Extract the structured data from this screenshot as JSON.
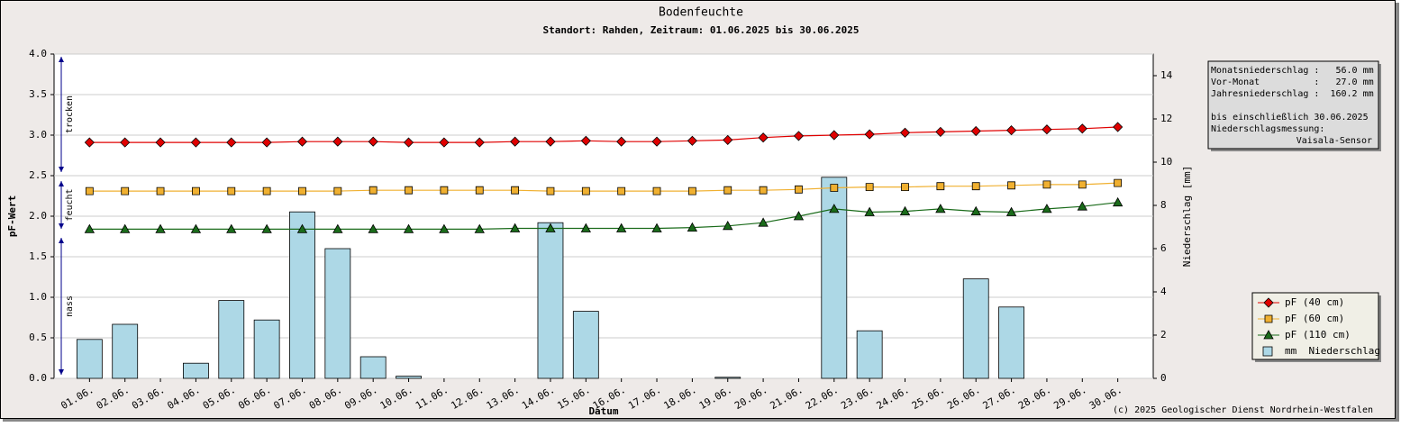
{
  "chart_data": {
    "type": "combo",
    "title": "Bodenfeuchte",
    "subtitle": "Standort: Rahden, Zeitraum: 01.06.2025 bis 30.06.2025",
    "xlabel": "Datum",
    "ylabel": "pF-Wert",
    "y2label": "Niederschlag [mm]",
    "categories": [
      "01.06.",
      "02.06.",
      "03.06.",
      "04.06.",
      "05.06.",
      "06.06.",
      "07.06.",
      "08.06.",
      "09.06.",
      "10.06.",
      "11.06.",
      "12.06.",
      "13.06.",
      "14.06.",
      "15.06.",
      "16.06.",
      "17.06.",
      "18.06.",
      "19.06.",
      "20.06.",
      "21.06.",
      "22.06.",
      "23.06.",
      "24.06.",
      "25.06.",
      "26.06.",
      "27.06.",
      "28.06.",
      "29.06.",
      "30.06."
    ],
    "ylim": [
      0,
      4
    ],
    "yticks": [
      {
        "value": 0,
        "label": "0.0"
      },
      0.5,
      {
        "value": 1,
        "label": "1.0"
      },
      1.5,
      {
        "value": 2,
        "label": "2.0"
      },
      2.5,
      {
        "value": 3,
        "label": "3.0"
      },
      3.5,
      {
        "value": 4,
        "label": "4.0"
      }
    ],
    "y2lim": [
      0,
      15
    ],
    "y2ticks": [
      0,
      2,
      4,
      6,
      8,
      10,
      12,
      14
    ],
    "grid": true,
    "zones": [
      {
        "label": "trocken",
        "range": [
          2.5,
          4
        ]
      },
      {
        "label": "feucht",
        "range": [
          1.8,
          2.5
        ]
      },
      {
        "label": "nass",
        "range": [
          0,
          1.8
        ]
      }
    ],
    "series": [
      {
        "name": "pF (40 cm)",
        "type": "line",
        "marker": "diamond",
        "color": "#e00000",
        "values": [
          2.91,
          2.91,
          2.91,
          2.91,
          2.91,
          2.91,
          2.92,
          2.92,
          2.92,
          2.91,
          2.91,
          2.91,
          2.92,
          2.92,
          2.93,
          2.92,
          2.92,
          2.93,
          2.94,
          2.97,
          2.99,
          3.0,
          3.01,
          3.03,
          3.04,
          3.05,
          3.06,
          3.07,
          3.08,
          3.1
        ]
      },
      {
        "name": "pF (60 cm)",
        "type": "line",
        "marker": "square",
        "color": "#f0b030",
        "values": [
          2.31,
          2.31,
          2.31,
          2.31,
          2.31,
          2.31,
          2.31,
          2.31,
          2.32,
          2.32,
          2.32,
          2.32,
          2.32,
          2.31,
          2.31,
          2.31,
          2.31,
          2.31,
          2.32,
          2.32,
          2.33,
          2.35,
          2.36,
          2.36,
          2.37,
          2.37,
          2.38,
          2.39,
          2.39,
          2.41
        ]
      },
      {
        "name": "pF (110 cm)",
        "type": "line",
        "marker": "triangle",
        "color": "#1a6b1a",
        "values": [
          1.84,
          1.84,
          1.84,
          1.84,
          1.84,
          1.84,
          1.84,
          1.84,
          1.84,
          1.84,
          1.84,
          1.84,
          1.85,
          1.85,
          1.85,
          1.85,
          1.85,
          1.86,
          1.88,
          1.92,
          2.0,
          2.09,
          2.05,
          2.06,
          2.09,
          2.06,
          2.05,
          2.09,
          2.12,
          2.17
        ]
      },
      {
        "name": "mm  Niederschlag",
        "type": "bar",
        "axis": "y2",
        "color": "#add8e6",
        "values": [
          1.8,
          2.5,
          0,
          0.7,
          3.6,
          2.7,
          7.7,
          6.0,
          1.0,
          0.1,
          0,
          0,
          0,
          7.2,
          3.1,
          0,
          0,
          0,
          0.05,
          0,
          0,
          9.3,
          2.2,
          0,
          0,
          4.6,
          3.3,
          0,
          0,
          0
        ]
      }
    ],
    "legend": "lower right",
    "info_box": {
      "lines": [
        "Monatsniederschlag :   56.0 mm",
        "Vor-Monat          :   27.0 mm",
        "Jahresniederschlag :  160.2 mm"
      ],
      "note": [
        "bis einschließlich 30.06.2025",
        "Niederschlagsmessung:"
      ],
      "sensor": "Vaisala-Sensor"
    },
    "footer": "(c) 2025 Geologischer Dienst Nordrhein-Westfalen"
  }
}
